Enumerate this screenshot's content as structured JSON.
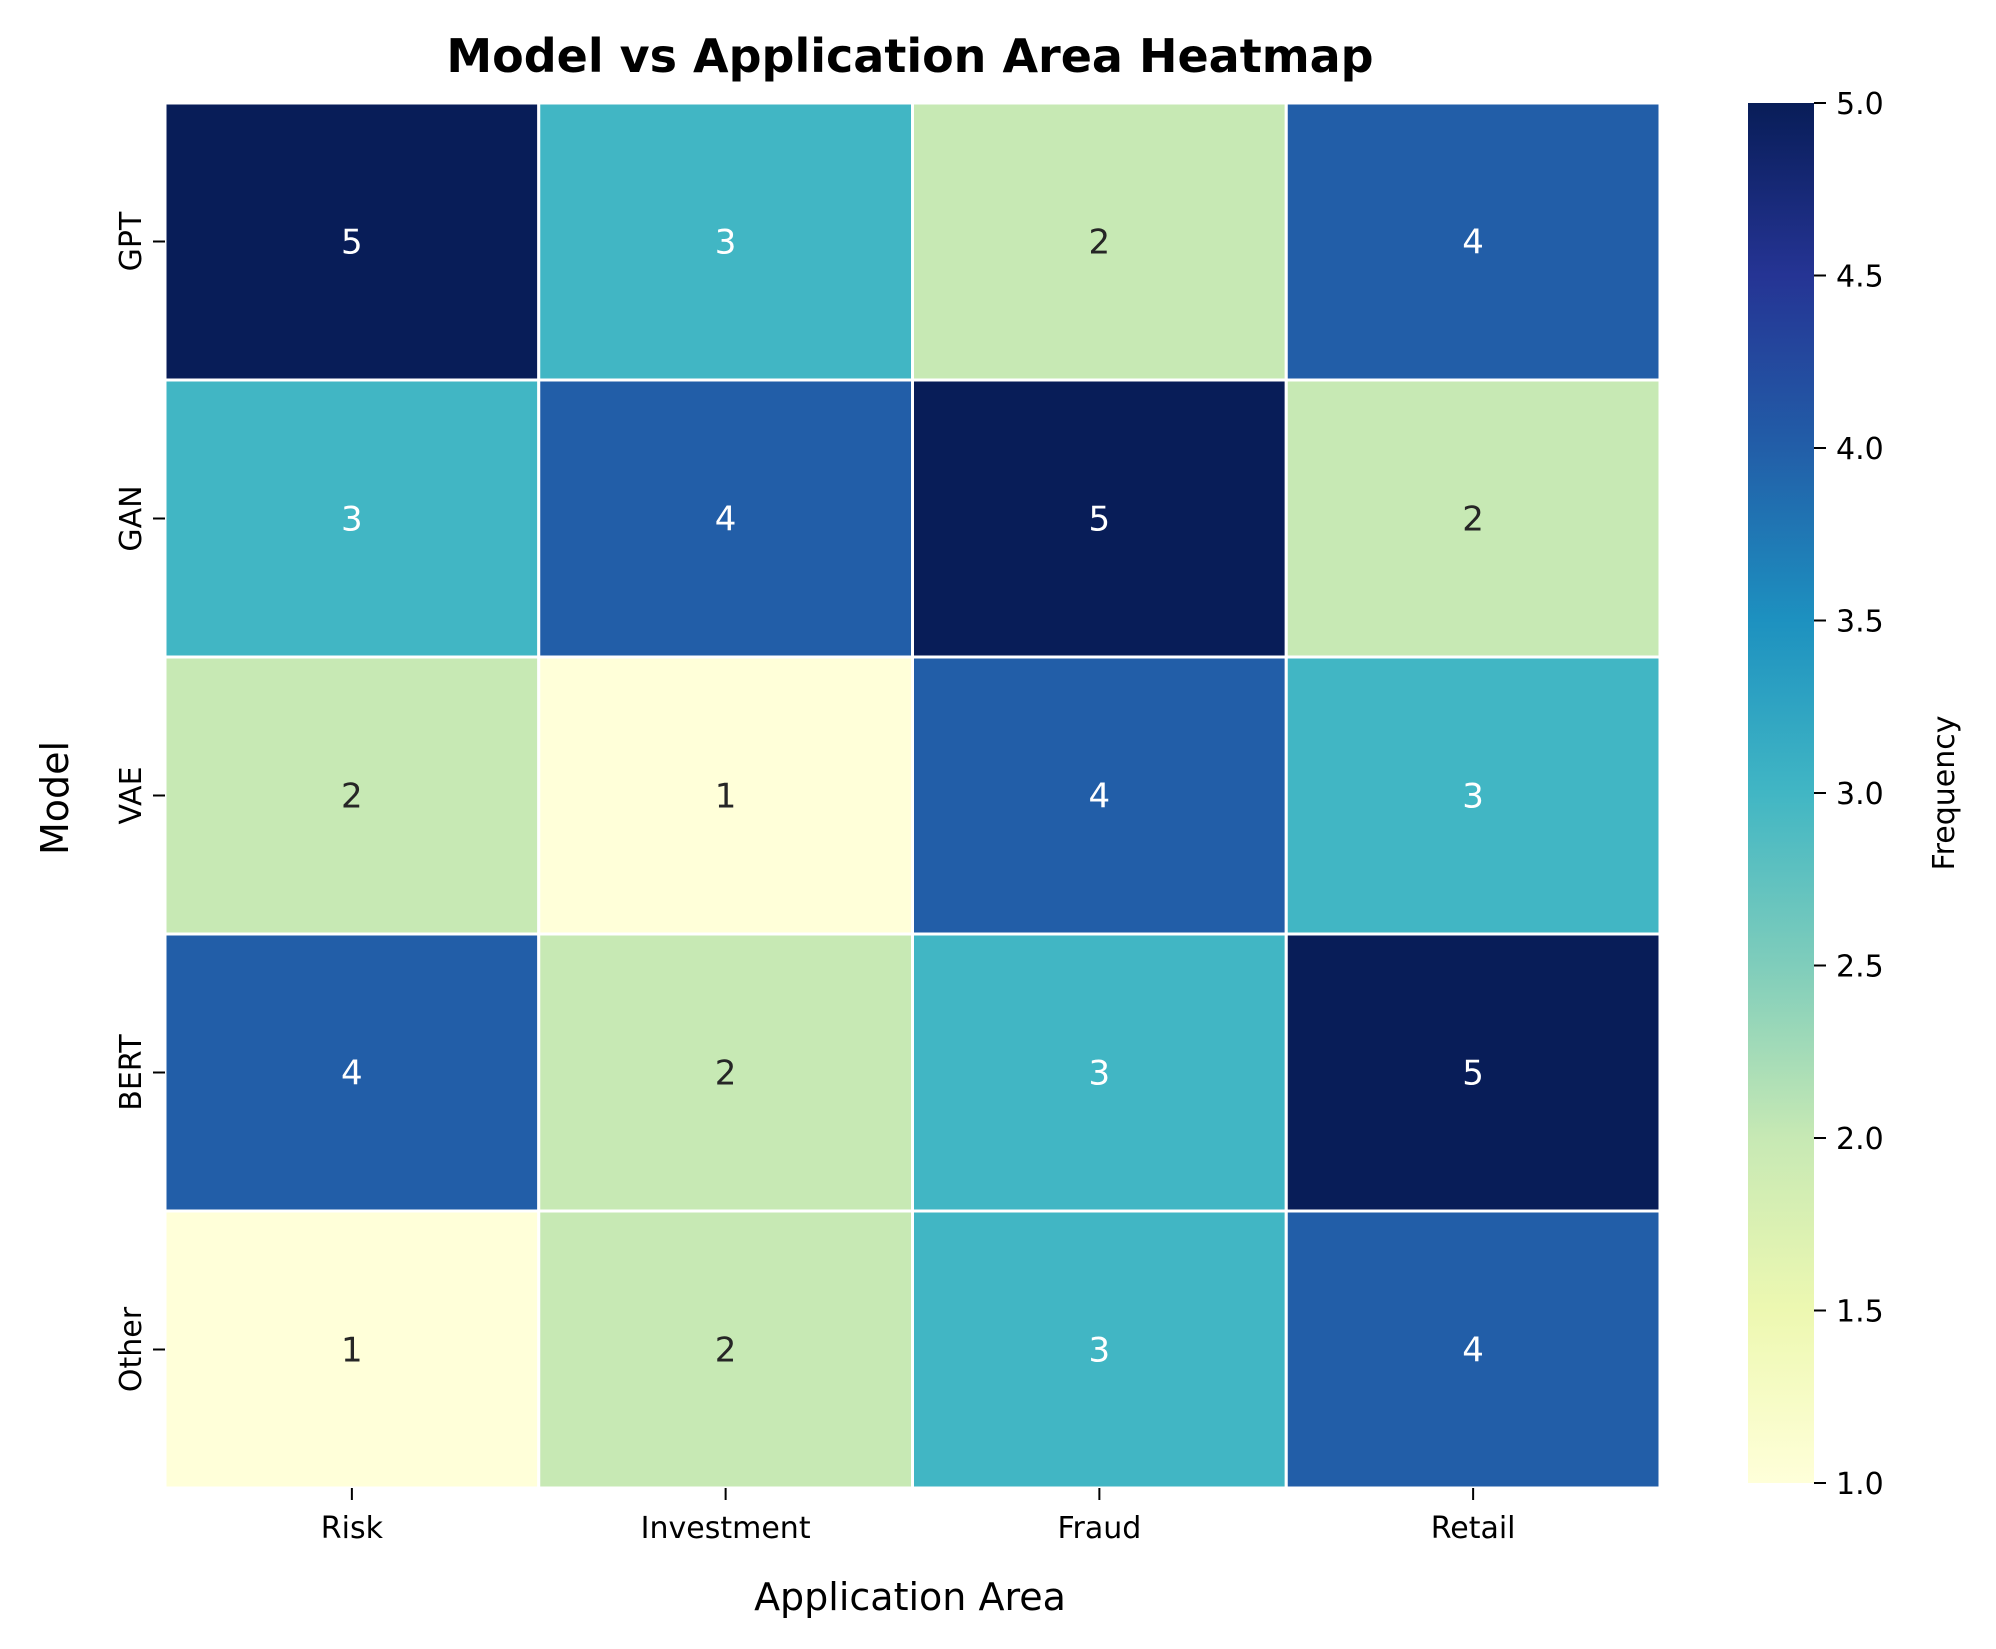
{
  "chart_data": {
    "type": "heatmap",
    "title": "Model vs Application Area Heatmap",
    "xlabel": "Application Area",
    "ylabel": "Model",
    "x_categories": [
      "Risk",
      "Investment",
      "Fraud",
      "Retail"
    ],
    "y_categories": [
      "GPT",
      "GAN",
      "VAE",
      "BERT",
      "Other"
    ],
    "values": [
      [
        5,
        3,
        2,
        4
      ],
      [
        3,
        4,
        5,
        2
      ],
      [
        2,
        1,
        4,
        3
      ],
      [
        4,
        2,
        3,
        5
      ],
      [
        1,
        2,
        3,
        4
      ]
    ],
    "colorbar": {
      "label": "Frequency",
      "range": [
        1.0,
        5.0
      ],
      "ticks": [
        "1.0",
        "1.5",
        "2.0",
        "2.5",
        "3.0",
        "3.5",
        "4.0",
        "4.5",
        "5.0"
      ],
      "colormap": "YlGnBu"
    },
    "annotations": true,
    "grid": false,
    "cell_border_color": "#ffffff"
  }
}
